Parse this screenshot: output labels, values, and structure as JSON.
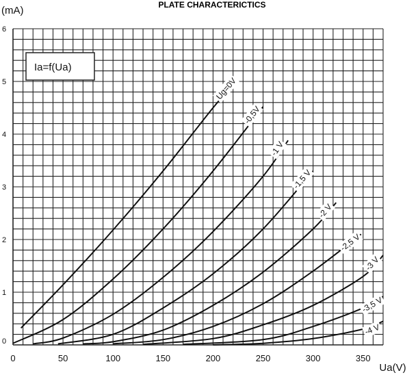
{
  "chart_data": {
    "type": "line",
    "title": "PLATE CHARACTERICTICS",
    "xlabel": "Ua(V)",
    "ylabel": "(mA)",
    "legend_box_text": "Ia=f(Ua)",
    "xlim": [
      0,
      370
    ],
    "ylim": [
      0,
      6
    ],
    "x_ticks": [
      0,
      50,
      100,
      150,
      200,
      250,
      300,
      350
    ],
    "y_ticks": [
      0,
      1,
      2,
      3,
      4,
      5,
      6
    ],
    "x_grid_step": 10,
    "y_grid_step": 0.2,
    "grid": true,
    "series": [
      {
        "name": "Ug=0V",
        "x": [
          8,
          50,
          100,
          150,
          200,
          224
        ],
        "y": [
          0.32,
          1.14,
          2.18,
          3.3,
          4.5,
          5.02
        ]
      },
      {
        "name": "-0,5V",
        "x": [
          0,
          50,
          100,
          150,
          200,
          250
        ],
        "y": [
          0.03,
          0.48,
          1.25,
          2.2,
          3.3,
          4.52
        ]
      },
      {
        "name": "-1 V",
        "x": [
          20,
          50,
          100,
          150,
          200,
          250,
          275
        ],
        "y": [
          0.02,
          0.13,
          0.58,
          1.28,
          2.15,
          3.2,
          3.88
        ]
      },
      {
        "name": "-1,5 V",
        "x": [
          45,
          100,
          150,
          200,
          250,
          300
        ],
        "y": [
          0.02,
          0.2,
          0.7,
          1.35,
          2.2,
          3.3
        ]
      },
      {
        "name": "-2 V",
        "x": [
          70,
          100,
          150,
          200,
          250,
          300,
          323
        ],
        "y": [
          0.02,
          0.06,
          0.28,
          0.75,
          1.38,
          2.2,
          2.7
        ]
      },
      {
        "name": "-2,5 V",
        "x": [
          100,
          150,
          200,
          250,
          300,
          348
        ],
        "y": [
          0.02,
          0.1,
          0.35,
          0.78,
          1.4,
          2.1
        ]
      },
      {
        "name": "-3 V",
        "x": [
          130,
          200,
          250,
          300,
          350,
          372
        ],
        "y": [
          0.01,
          0.12,
          0.38,
          0.75,
          1.3,
          1.7
        ]
      },
      {
        "name": "-3,5 V",
        "x": [
          170,
          250,
          300,
          350,
          372
        ],
        "y": [
          0.01,
          0.1,
          0.35,
          0.7,
          0.92
        ]
      },
      {
        "name": "-4 V",
        "x": [
          200,
          250,
          300,
          350,
          372
        ],
        "y": [
          0.0,
          0.03,
          0.12,
          0.3,
          0.45
        ]
      }
    ]
  },
  "ui": {
    "line_color": "#111111",
    "grid_color": "#222222",
    "label_bg": "#ffffff"
  }
}
